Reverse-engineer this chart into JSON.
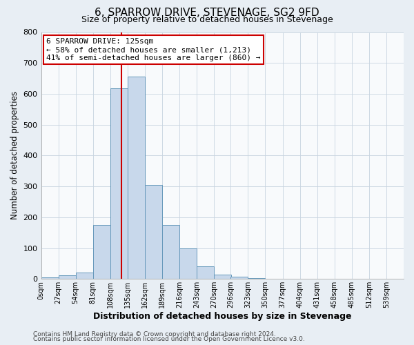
{
  "title": "6, SPARROW DRIVE, STEVENAGE, SG2 9FD",
  "subtitle": "Size of property relative to detached houses in Stevenage",
  "xlabel": "Distribution of detached houses by size in Stevenage",
  "ylabel": "Number of detached properties",
  "bar_left_edges": [
    0,
    27,
    54,
    81,
    108,
    135,
    162,
    189,
    216,
    243,
    270,
    296,
    323,
    350,
    377,
    404,
    431,
    458,
    485,
    512
  ],
  "bar_heights": [
    5,
    12,
    20,
    175,
    617,
    655,
    305,
    175,
    100,
    42,
    13,
    8,
    2,
    1,
    0,
    0,
    0,
    0,
    0,
    0
  ],
  "bin_width": 27,
  "bar_facecolor": "#c8d8eb",
  "bar_edgecolor": "#6699bb",
  "vline_x": 125,
  "vline_color": "#cc0000",
  "annotation_title": "6 SPARROW DRIVE: 125sqm",
  "annotation_line1": "← 58% of detached houses are smaller (1,213)",
  "annotation_line2": "41% of semi-detached houses are larger (860) →",
  "annotation_box_edgecolor": "#cc0000",
  "ylim": [
    0,
    800
  ],
  "yticks": [
    0,
    100,
    200,
    300,
    400,
    500,
    600,
    700,
    800
  ],
  "xtick_labels": [
    "0sqm",
    "27sqm",
    "54sqm",
    "81sqm",
    "108sqm",
    "135sqm",
    "162sqm",
    "189sqm",
    "216sqm",
    "243sqm",
    "270sqm",
    "296sqm",
    "323sqm",
    "350sqm",
    "377sqm",
    "404sqm",
    "431sqm",
    "458sqm",
    "485sqm",
    "512sqm",
    "539sqm"
  ],
  "xtick_positions": [
    0,
    27,
    54,
    81,
    108,
    135,
    162,
    189,
    216,
    243,
    270,
    296,
    323,
    350,
    377,
    404,
    431,
    458,
    485,
    512,
    539
  ],
  "footer_line1": "Contains HM Land Registry data © Crown copyright and database right 2024.",
  "footer_line2": "Contains public sector information licensed under the Open Government Licence v3.0.",
  "bg_color": "#e8eef4",
  "plot_bg_color": "#f8fafc",
  "grid_color": "#c8d4e0",
  "title_fontsize": 11,
  "subtitle_fontsize": 9
}
